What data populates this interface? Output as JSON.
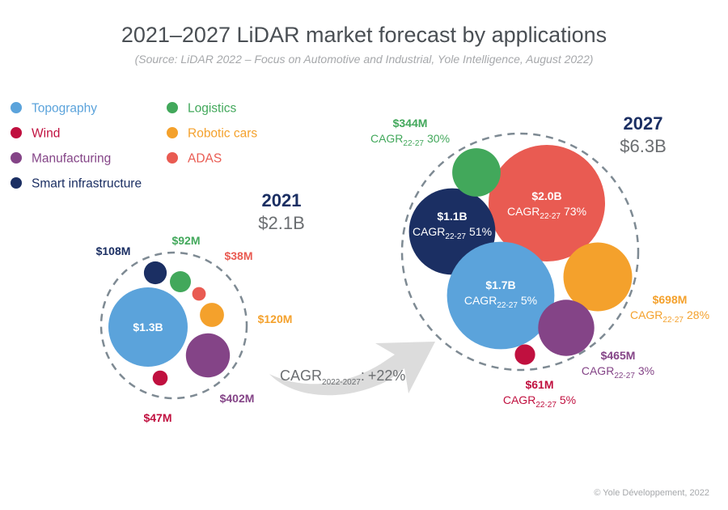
{
  "chart_data": {
    "type": "bubble",
    "title": "2021–2027 LiDAR market forecast by applications",
    "subtitle": "(Source:  LiDAR 2022 – Focus on Automotive and Industrial, Yole Intelligence, August 2022)",
    "colors": {
      "Topography": "#5ba3db",
      "Wind": "#c0103f",
      "Manufacturing": "#844487",
      "Smart infrastructure": "#1b2f63",
      "Logistics": "#42a85b",
      "Robotic cars": "#f4a12c",
      "ADAS": "#e95b52"
    },
    "legend": [
      {
        "name": "Topography",
        "color": "#5ba3db"
      },
      {
        "name": "Wind",
        "color": "#c0103f"
      },
      {
        "name": "Manufacturing",
        "color": "#844487"
      },
      {
        "name": "Smart infrastructure",
        "color": "#1b2f63"
      },
      {
        "name": "Logistics",
        "color": "#42a85b"
      },
      {
        "name": "Robotic cars",
        "color": "#f4a12c"
      },
      {
        "name": "ADAS",
        "color": "#e95b52"
      }
    ],
    "years": [
      {
        "year": "2021",
        "total": "$2.1B",
        "segments": [
          {
            "name": "Topography",
            "value_musd": 1300,
            "label": "$1.3B"
          },
          {
            "name": "Smart infrastructure",
            "value_musd": 108,
            "label": "$108M"
          },
          {
            "name": "Logistics",
            "value_musd": 92,
            "label": "$92M"
          },
          {
            "name": "ADAS",
            "value_musd": 38,
            "label": "$38M"
          },
          {
            "name": "Robotic cars",
            "value_musd": 120,
            "label": "$120M"
          },
          {
            "name": "Manufacturing",
            "value_musd": 402,
            "label": "$402M"
          },
          {
            "name": "Wind",
            "value_musd": 47,
            "label": "$47M"
          }
        ]
      },
      {
        "year": "2027",
        "total": "$6.3B",
        "segments": [
          {
            "name": "ADAS",
            "value_musd": 2000,
            "label": "$2.0B",
            "cagr": "73%"
          },
          {
            "name": "Smart infrastructure",
            "value_musd": 1100,
            "label": "$1.1B",
            "cagr": "51%"
          },
          {
            "name": "Logistics",
            "value_musd": 344,
            "label": "$344M",
            "cagr": "30%"
          },
          {
            "name": "Topography",
            "value_musd": 1700,
            "label": "$1.7B",
            "cagr": "5%"
          },
          {
            "name": "Robotic cars",
            "value_musd": 698,
            "label": "$698M",
            "cagr": "28%"
          },
          {
            "name": "Manufacturing",
            "value_musd": 465,
            "label": "$465M",
            "cagr": "3%"
          },
          {
            "name": "Wind",
            "value_musd": 61,
            "label": "$61M",
            "cagr": "5%"
          }
        ]
      }
    ],
    "overall_cagr": {
      "prefix": "CAGR",
      "period": "2022-2027",
      "suffix": ":",
      "value": "+22%"
    },
    "cagr_prefix": "CAGR",
    "cagr_period_short": "22-27"
  },
  "footer": {
    "copyright": "© Yole Développement, 2022"
  }
}
